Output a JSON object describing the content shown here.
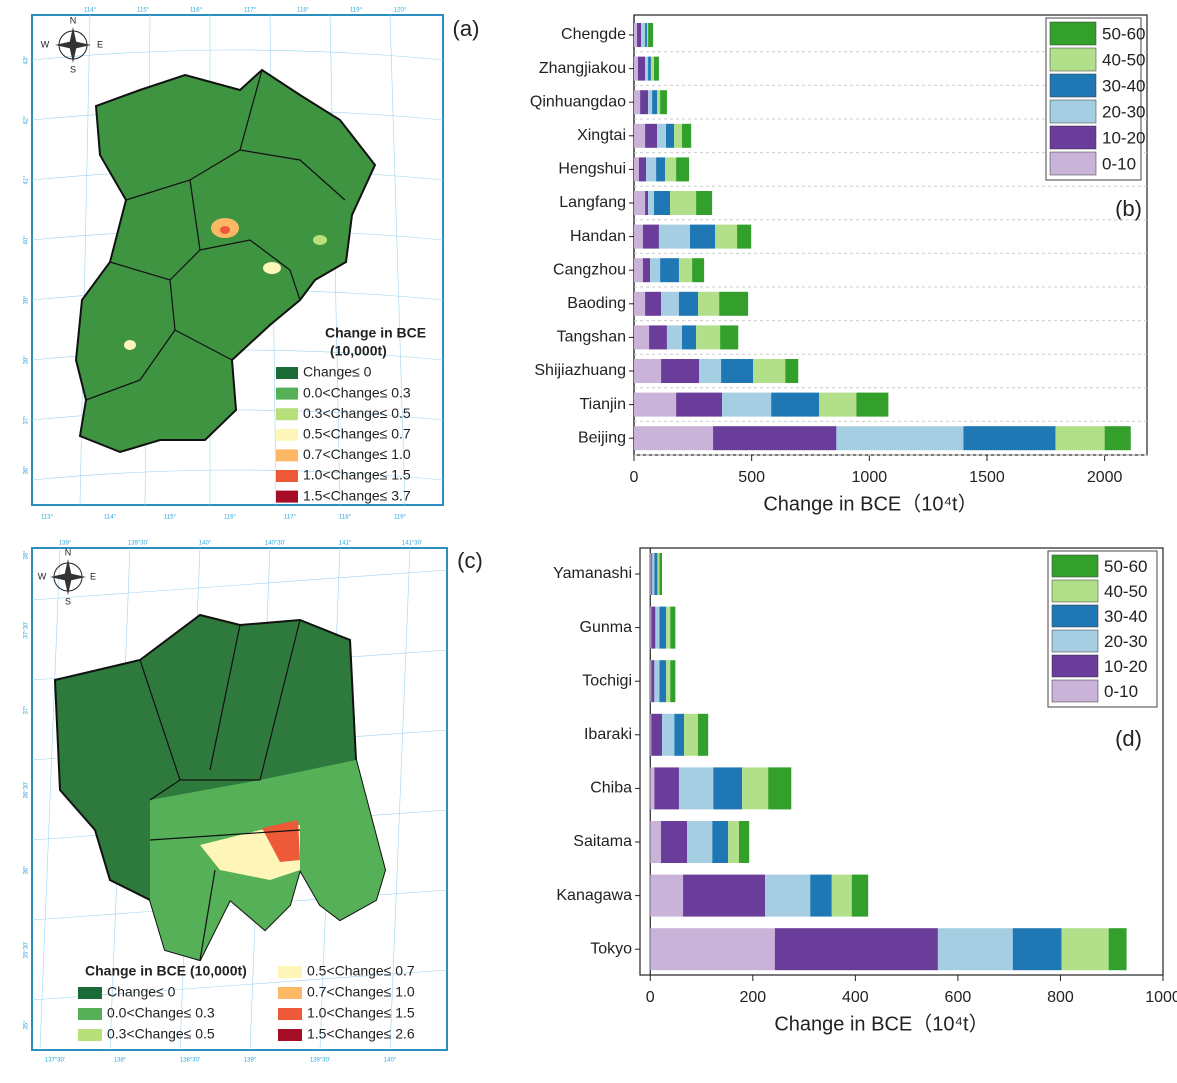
{
  "chart_data": [
    {
      "type": "hbar_stacked",
      "panel_label": "(b)",
      "xlabel": "Change in BCE（10⁴t）",
      "categories": [
        "Chengde",
        "Zhangjiakou",
        "Qinhuangdao",
        "Xingtai",
        "Hengshui",
        "Langfang",
        "Handan",
        "Cangzhou",
        "Baoding",
        "Tangshan",
        "Shijiazhuang",
        "Tianjin",
        "Beijing"
      ],
      "series": [
        {
          "name": "0-10",
          "color": "#c9b3d9",
          "values": [
            13,
            17,
            26,
            47,
            21,
            47,
            38,
            38,
            47,
            64,
            115,
            179,
            336
          ]
        },
        {
          "name": "10-20",
          "color": "#6a3d9a",
          "values": [
            17,
            30,
            34,
            51,
            30,
            13,
            68,
            30,
            68,
            76,
            162,
            195,
            524
          ]
        },
        {
          "name": "20-30",
          "color": "#a6cee3",
          "values": [
            17,
            13,
            17,
            38,
            43,
            25,
            132,
            43,
            76,
            64,
            93,
            209,
            540
          ]
        },
        {
          "name": "30-40",
          "color": "#1f78b4",
          "values": [
            8,
            12,
            21,
            34,
            38,
            68,
            107,
            80,
            81,
            60,
            136,
            204,
            391
          ]
        },
        {
          "name": "40-50",
          "color": "#b2df8a",
          "values": [
            5,
            13,
            13,
            34,
            47,
            111,
            93,
            56,
            90,
            102,
            137,
            158,
            209
          ]
        },
        {
          "name": "50-60",
          "color": "#33a02c",
          "values": [
            21,
            21,
            29,
            39,
            55,
            68,
            60,
            51,
            123,
            77,
            55,
            136,
            111
          ]
        }
      ],
      "xlim": [
        0,
        2180
      ],
      "xticks": [
        0,
        500,
        1000,
        1500,
        2000
      ],
      "grid": true,
      "legend": "upper right"
    },
    {
      "type": "hbar_stacked",
      "panel_label": "(d)",
      "xlabel": "Change in BCE（10⁴t）",
      "categories": [
        "Yamanashi",
        "Gunma",
        "Tochigi",
        "Ibaraki",
        "Chiba",
        "Saitama",
        "Kanagawa",
        "Tokyo"
      ],
      "series": [
        {
          "name": "0-10",
          "color": "#c9b3d9",
          "values": [
            2,
            2,
            2,
            2,
            8,
            21,
            64,
            243
          ]
        },
        {
          "name": "10-20",
          "color": "#6a3d9a",
          "values": [
            2,
            8,
            6,
            21,
            48,
            51,
            160,
            318
          ]
        },
        {
          "name": "20-30",
          "color": "#a6cee3",
          "values": [
            4,
            8,
            10,
            24,
            67,
            49,
            88,
            146
          ]
        },
        {
          "name": "30-40",
          "color": "#1f78b4",
          "values": [
            6,
            13,
            13,
            19,
            56,
            31,
            42,
            95
          ]
        },
        {
          "name": "40-50",
          "color": "#b2df8a",
          "values": [
            4,
            8,
            8,
            27,
            51,
            21,
            39,
            92
          ]
        },
        {
          "name": "50-60",
          "color": "#33a02c",
          "values": [
            5,
            10,
            10,
            20,
            45,
            20,
            32,
            35
          ]
        }
      ],
      "xlim": [
        -20,
        1000
      ],
      "xticks": [
        0,
        200,
        400,
        600,
        800,
        1000
      ],
      "grid": false,
      "legend": "upper right"
    }
  ],
  "maps": [
    {
      "panel_label": "(a)",
      "legend_title": [
        "Change in BCE",
        "(10,000t)"
      ],
      "legend": [
        "Change≤ 0",
        "0.0<Change≤ 0.3",
        "0.3<Change≤ 0.5",
        "0.5<Change≤ 0.7",
        "0.7<Change≤ 1.0",
        "1.0<Change≤ 1.5",
        "1.5<Change≤ 3.7"
      ],
      "colors": [
        "#1a6b38",
        "#55b058",
        "#b8e07a",
        "#fdf6b8",
        "#fdb865",
        "#ee5a38",
        "#a50e26"
      ],
      "compass": [
        "N",
        "S",
        "E",
        "W"
      ],
      "top_ticks": [
        "114°",
        "115°",
        "116°",
        "117°",
        "118°",
        "119°",
        "120°"
      ],
      "bottom_ticks": [
        "113°",
        "114°",
        "115°",
        "116°",
        "117°",
        "118°",
        "119°"
      ],
      "left_ticks": [
        "43°",
        "42°",
        "41°",
        "40°",
        "39°",
        "38°",
        "37°",
        "36°"
      ]
    },
    {
      "panel_label": "(c)",
      "legend_title": [
        "Change in BCE (10,000t)"
      ],
      "legend": [
        "Change≤ 0",
        "0.0<Change≤ 0.3",
        "0.3<Change≤ 0.5",
        "0.5<Change≤ 0.7",
        "0.7<Change≤ 1.0",
        "1.0<Change≤ 1.5",
        "1.5<Change≤ 2.6"
      ],
      "colors": [
        "#1a6b38",
        "#55b058",
        "#b8e07a",
        "#fdf6b8",
        "#fdb865",
        "#ee5a38",
        "#a50e26"
      ],
      "compass": [
        "N",
        "S",
        "E",
        "W"
      ],
      "top_ticks": [
        "139°",
        "139°30'",
        "140°",
        "140°30'",
        "141°",
        "141°30'"
      ],
      "bottom_ticks": [
        "137°30'",
        "138°",
        "138°30'",
        "139°",
        "139°30'",
        "140°"
      ],
      "left_ticks": [
        "38°",
        "37°30'",
        "37°",
        "36°30'",
        "36°",
        "35°30'",
        "35°"
      ]
    }
  ]
}
